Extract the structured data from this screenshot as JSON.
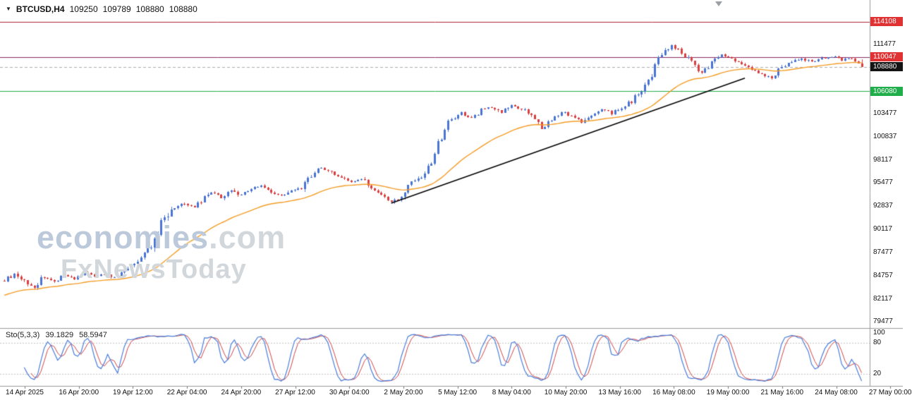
{
  "header": {
    "symbol": "BTCUSD,H4",
    "ohlc": {
      "open": "109250",
      "high": "109789",
      "low": "108880",
      "close": "108880"
    }
  },
  "watermark": {
    "line1_bold": "economies",
    "line1_rest": ".com",
    "line2": "FxNewsToday"
  },
  "price_axis": {
    "labels": [
      {
        "value": 114108,
        "text": "114108",
        "style": "chip",
        "bg": "#e03232"
      },
      {
        "value": 111477,
        "text": "111477",
        "style": "plain"
      },
      {
        "value": 110047,
        "text": "110047",
        "style": "chip",
        "bg": "#e03232"
      },
      {
        "value": 108880,
        "text": "108880",
        "style": "chip",
        "bg": "#141414"
      },
      {
        "value": 106080,
        "text": "106080",
        "style": "chip",
        "bg": "#1fae4a"
      },
      {
        "value": 103477,
        "text": "103477",
        "style": "plain"
      },
      {
        "value": 100837,
        "text": "100837",
        "style": "plain"
      },
      {
        "value": 98117,
        "text": "98117",
        "style": "plain"
      },
      {
        "value": 95477,
        "text": "95477",
        "style": "plain"
      },
      {
        "value": 92837,
        "text": "92837",
        "style": "plain"
      },
      {
        "value": 90117,
        "text": "90117",
        "style": "plain"
      },
      {
        "value": 87477,
        "text": "87477",
        "style": "plain"
      },
      {
        "value": 84757,
        "text": "84757",
        "style": "plain"
      },
      {
        "value": 82117,
        "text": "82117",
        "style": "plain"
      },
      {
        "value": 79477,
        "text": "79477",
        "style": "plain"
      }
    ]
  },
  "time_axis": {
    "labels": [
      "14 Apr 2025",
      "16 Apr 20:00",
      "19 Apr 12:00",
      "22 Apr 04:00",
      "24 Apr 20:00",
      "27 Apr 12:00",
      "30 Apr 04:00",
      "2 May 20:00",
      "5 May 12:00",
      "8 May 04:00",
      "10 May 20:00",
      "13 May 16:00",
      "16 May 08:00",
      "19 May 00:00",
      "21 May 16:00",
      "24 May 08:00",
      "27 May 00:00"
    ]
  },
  "indicator": {
    "label": "Sto(5,3,3)",
    "main_value": "39.1829",
    "signal_value": "58.5947",
    "axis_labels": [
      {
        "value": 100,
        "text": "100"
      },
      {
        "value": 80,
        "text": "80"
      },
      {
        "value": 20,
        "text": "20"
      }
    ]
  },
  "chart_data": {
    "type": "candlestick",
    "symbol": "BTCUSD",
    "timeframe": "H4",
    "title": "BTCUSD,H4 109250 109789 108880 108880",
    "x_range": [
      "14 Apr 2025",
      "27 May 00:00"
    ],
    "visible_price_range": [
      79477,
      114700
    ],
    "bars_total": 258,
    "last_candle": {
      "open": 109250,
      "high": 109789,
      "low": 108880,
      "close": 108880
    },
    "close_anchors": [
      [
        0,
        84300
      ],
      [
        3,
        85100
      ],
      [
        6,
        84200
      ],
      [
        9,
        83500
      ],
      [
        12,
        84700
      ],
      [
        15,
        84200
      ],
      [
        18,
        84900
      ],
      [
        21,
        84500
      ],
      [
        24,
        85200
      ],
      [
        27,
        84800
      ],
      [
        30,
        85000
      ],
      [
        33,
        84600
      ],
      [
        36,
        85400
      ],
      [
        40,
        86600
      ],
      [
        44,
        88500
      ],
      [
        47,
        90800
      ],
      [
        50,
        92400
      ],
      [
        53,
        93200
      ],
      [
        56,
        92700
      ],
      [
        59,
        93600
      ],
      [
        62,
        94400
      ],
      [
        65,
        93800
      ],
      [
        68,
        94700
      ],
      [
        71,
        94100
      ],
      [
        74,
        94800
      ],
      [
        77,
        95200
      ],
      [
        80,
        94500
      ],
      [
        83,
        94000
      ],
      [
        86,
        94600
      ],
      [
        89,
        95000
      ],
      [
        92,
        96400
      ],
      [
        95,
        97300
      ],
      [
        98,
        96800
      ],
      [
        101,
        96200
      ],
      [
        104,
        95600
      ],
      [
        107,
        95900
      ],
      [
        110,
        94800
      ],
      [
        113,
        94100
      ],
      [
        116,
        93300
      ],
      [
        119,
        94000
      ],
      [
        122,
        95600
      ],
      [
        125,
        96300
      ],
      [
        128,
        97900
      ],
      [
        131,
        100800
      ],
      [
        134,
        102900
      ],
      [
        137,
        103600
      ],
      [
        140,
        103100
      ],
      [
        143,
        103900
      ],
      [
        146,
        104200
      ],
      [
        149,
        103600
      ],
      [
        152,
        104500
      ],
      [
        155,
        104000
      ],
      [
        158,
        103200
      ],
      [
        161,
        101900
      ],
      [
        164,
        102800
      ],
      [
        167,
        103700
      ],
      [
        170,
        103200
      ],
      [
        173,
        102400
      ],
      [
        176,
        103300
      ],
      [
        179,
        104000
      ],
      [
        182,
        103500
      ],
      [
        185,
        104300
      ],
      [
        188,
        105000
      ],
      [
        191,
        106200
      ],
      [
        194,
        108000
      ],
      [
        197,
        110200
      ],
      [
        200,
        111300
      ],
      [
        203,
        110600
      ],
      [
        206,
        109500
      ],
      [
        209,
        108300
      ],
      [
        212,
        109400
      ],
      [
        215,
        110300
      ],
      [
        218,
        109800
      ],
      [
        221,
        109300
      ],
      [
        224,
        108700
      ],
      [
        227,
        108100
      ],
      [
        230,
        107500
      ],
      [
        233,
        108900
      ],
      [
        236,
        109600
      ],
      [
        239,
        109900
      ],
      [
        242,
        109500
      ],
      [
        245,
        109800
      ],
      [
        248,
        110100
      ],
      [
        251,
        109700
      ],
      [
        254,
        109900
      ],
      [
        257,
        108880
      ]
    ],
    "hlines": [
      {
        "price": 114108,
        "color": "#b02437",
        "role": "resistance"
      },
      {
        "price": 110047,
        "color": "#8c2a62",
        "role": "resistance"
      },
      {
        "price": 108880,
        "color": "#ababab",
        "role": "current-price",
        "dash": true
      },
      {
        "price": 106080,
        "color": "#1fae4a",
        "role": "support"
      }
    ],
    "trendline": {
      "from_bar": 116,
      "from_price": 93200,
      "to_bar": 222,
      "to_price": 107600,
      "color": "#000000"
    },
    "ma": {
      "period": 34,
      "seed_price": 82500,
      "color": "#f59d27"
    },
    "candle_colors": {
      "up": "#4a74d4",
      "down": "#d94040"
    },
    "stochastic": {
      "k": 5,
      "d": 3,
      "slowing": 3,
      "last_main": 39.1829,
      "last_signal": 58.5947,
      "main_color": "#4a7edb",
      "signal_color": "#d04545",
      "levels": [
        80,
        20
      ]
    }
  }
}
